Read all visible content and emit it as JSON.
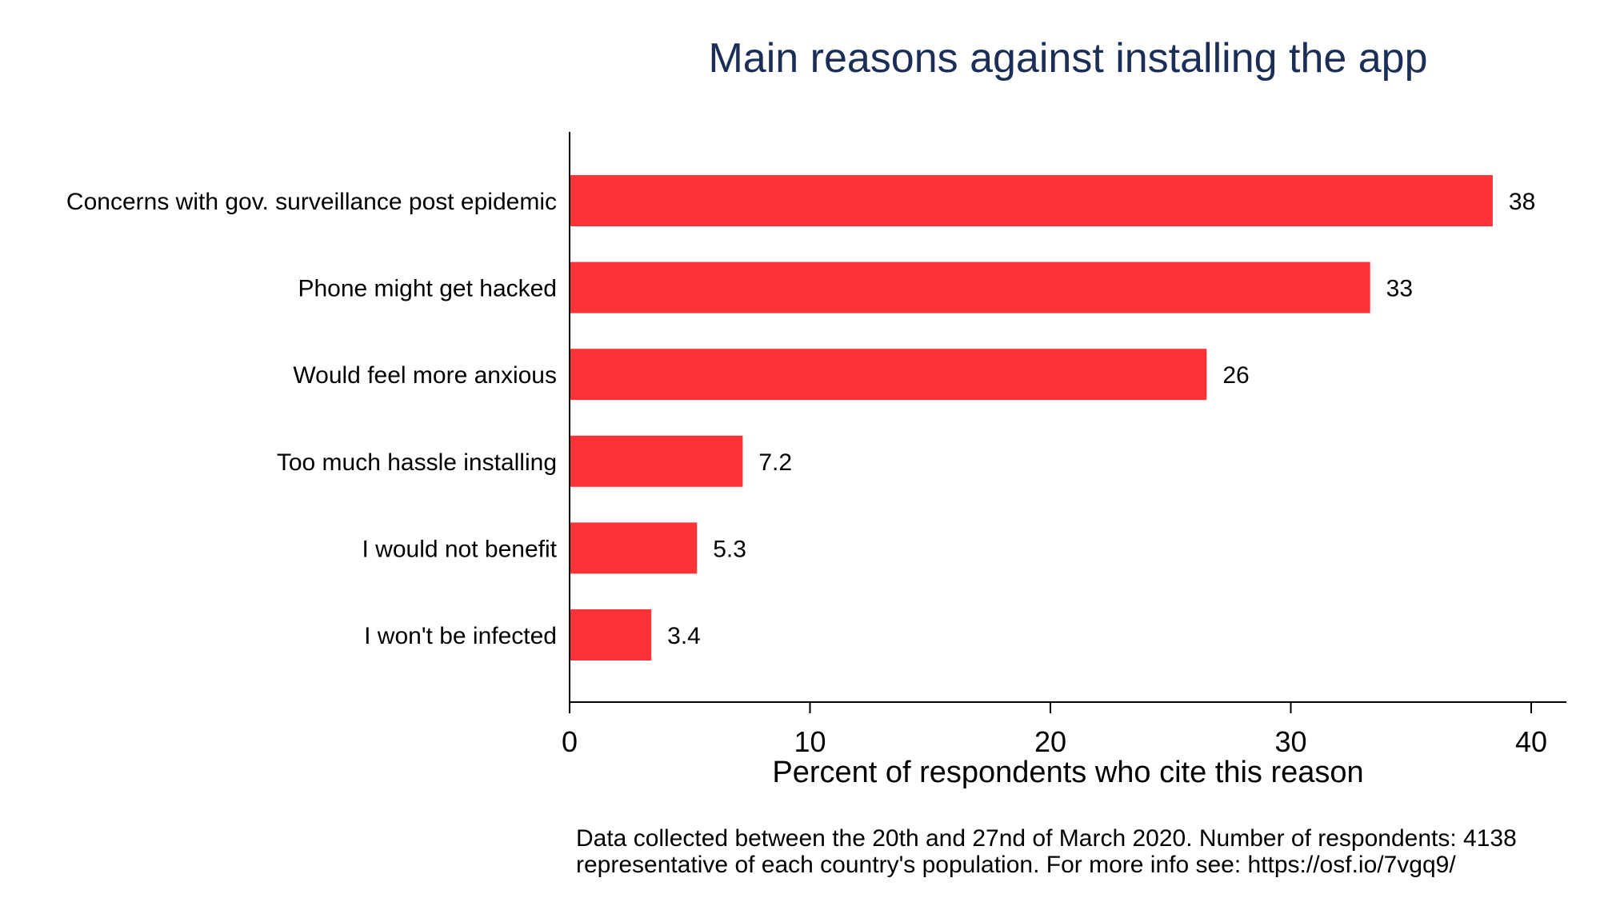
{
  "chart_data": {
    "type": "bar",
    "orientation": "horizontal",
    "title": "Main reasons against installing the app",
    "xlabel": "Percent of respondents who cite this reason",
    "ylabel": "",
    "categories": [
      "Concerns with gov. surveillance post epidemic",
      "Phone might get hacked",
      "Would feel more anxious",
      "Too much hassle installing",
      "I would not benefit",
      "I won't be infected"
    ],
    "values": [
      38.4,
      33.3,
      26.5,
      7.2,
      5.3,
      3.4
    ],
    "value_labels": [
      "38",
      "33",
      "26",
      "7.2",
      "5.3",
      "3.4"
    ],
    "xlim": [
      0,
      41
    ],
    "xticks": [
      0,
      10,
      20,
      30,
      40
    ],
    "xtick_labels": [
      "0",
      "10",
      "20",
      "30",
      "40"
    ],
    "grid": false,
    "legend": "none",
    "bar_color": "#ff3237",
    "title_color": "#1a2e57",
    "note_lines": [
      "Data collected between the 20th and 27nd of March 2020. Number of respondents: 4138",
      "representative of each country's population. For more info see: https://osf.io/7vgq9/"
    ]
  }
}
